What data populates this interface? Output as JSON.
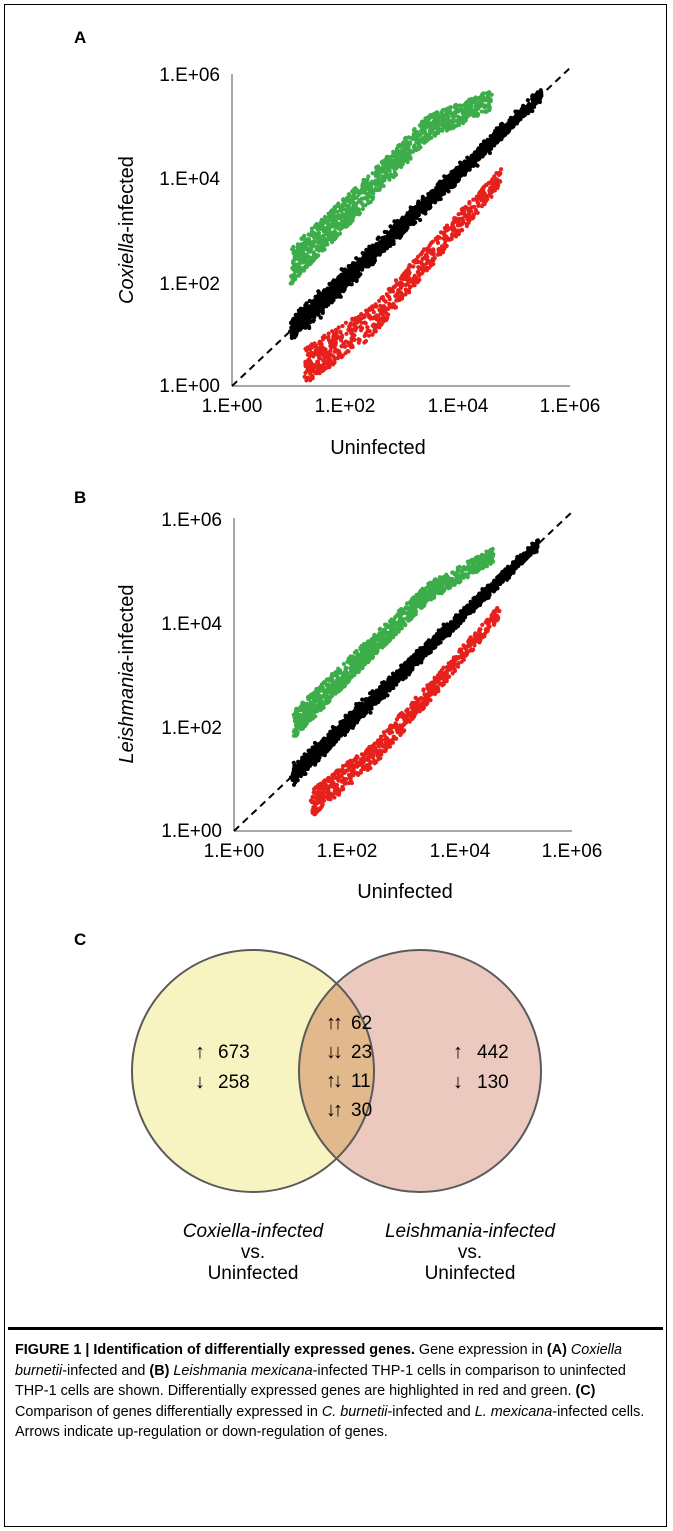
{
  "panels": {
    "A": {
      "letter": "A",
      "ylabel_italic": "Coxiella",
      "ylabel_rest": "-infected",
      "xlabel": "Uninfected",
      "y_ticks": [
        "1.E+06",
        "1.E+04",
        "1.E+02",
        "1.E+00"
      ],
      "x_ticks": [
        "1.E+00",
        "1.E+02",
        "1.E+04",
        "1.E+06"
      ]
    },
    "B": {
      "letter": "B",
      "ylabel_italic": "Leishmania",
      "ylabel_rest": "-infected",
      "xlabel": "Uninfected",
      "y_ticks": [
        "1.E+06",
        "1.E+04",
        "1.E+02",
        "1.E+00"
      ],
      "x_ticks": [
        "1.E+00",
        "1.E+02",
        "1.E+04",
        "1.E+06"
      ]
    },
    "C": {
      "letter": "C",
      "left": {
        "up": "673",
        "down": "258"
      },
      "overlap": [
        {
          "arrows": "↑↑",
          "count": "62"
        },
        {
          "arrows": "↓↓",
          "count": "23"
        },
        {
          "arrows": "↑↓",
          "count": "11"
        },
        {
          "arrows": "↓↑",
          "count": "30"
        }
      ],
      "right": {
        "up": "442",
        "down": "130"
      },
      "up_arrow": "↑",
      "down_arrow": "↓",
      "left_label": {
        "org": "Coxiella-infected",
        "vs": "vs.",
        "ref": "Uninfected"
      },
      "right_label": {
        "org": "Leishmania-infected",
        "vs": "vs.",
        "ref": "Uninfected"
      },
      "colors": {
        "left_fill": "#f7f4c2",
        "right_fill": "#ebc9be",
        "overlap_fill": "#e2b98c",
        "stroke": "#5a5a5a"
      }
    }
  },
  "chart_data": [
    {
      "type": "scatter",
      "title": "",
      "xlabel": "Uninfected",
      "ylabel": "Coxiella-infected",
      "x_scale": "log",
      "y_scale": "log",
      "xlim": [
        1,
        1000000
      ],
      "ylim": [
        1,
        1000000
      ],
      "grid": false,
      "reference_line": "y = x (dashed)",
      "colors": {
        "up": "#3dad4a",
        "down": "#e8201c",
        "unchanged": "#000000"
      },
      "series": [
        {
          "color": "#3dad4a",
          "spread_log10": [
            0.3,
            0.9
          ],
          "trend": [
            [
              12,
              40
            ],
            [
              200,
              1000
            ],
            [
              3000,
              25000
            ],
            [
              40000,
              110000
            ]
          ]
        },
        {
          "color": "#e8201c",
          "spread_log10": [
            -0.9,
            -0.3
          ],
          "trend": [
            [
              20,
              12
            ],
            [
              300,
              60
            ],
            [
              3000,
              800
            ],
            [
              60000,
              20000
            ]
          ]
        },
        {
          "color": "#000000",
          "spread_log10": [
            -0.3,
            0.3
          ],
          "trend": [
            [
              12,
              12
            ],
            [
              1000,
              1000
            ],
            [
              100000,
              100000
            ],
            [
              300000,
              300000
            ]
          ]
        }
      ]
    },
    {
      "type": "scatter",
      "title": "",
      "xlabel": "Uninfected",
      "ylabel": "Leishmania-infected",
      "x_scale": "log",
      "y_scale": "log",
      "xlim": [
        1,
        1000000
      ],
      "ylim": [
        1,
        1000000
      ],
      "grid": false,
      "reference_line": "y = x (dashed)",
      "colors": {
        "up": "#3dad4a",
        "down": "#e8201c",
        "unchanged": "#000000"
      },
      "series": [
        {
          "color": "#3dad4a",
          "spread_log10": [
            0.25,
            0.7
          ],
          "trend": [
            [
              12,
              30
            ],
            [
              200,
              700
            ],
            [
              3000,
              14000
            ],
            [
              40000,
              80000
            ]
          ]
        },
        {
          "color": "#e8201c",
          "spread_log10": [
            -0.7,
            -0.25
          ],
          "trend": [
            [
              25,
              12
            ],
            [
              300,
              80
            ],
            [
              3000,
              1000
            ],
            [
              50000,
              25000
            ]
          ]
        },
        {
          "color": "#000000",
          "spread_log10": [
            -0.25,
            0.25
          ],
          "trend": [
            [
              12,
              12
            ],
            [
              1000,
              1000
            ],
            [
              100000,
              100000
            ],
            [
              250000,
              250000
            ]
          ]
        }
      ]
    }
  ],
  "caption": {
    "fig_label": "FIGURE 1 |",
    "title": "Identification of differentially expressed genes.",
    "p1": "Gene expression in",
    "A": "(A)",
    "org1": "Coxiella burnetii",
    "p2": "-infected and",
    "B": "(B)",
    "org2": "Leishmania mexicana",
    "p3": "-infected THP-1 cells in comparison to uninfected THP-1 cells are shown. Differentially expressed genes are highlighted in red and green.",
    "C": "(C)",
    "p4": "Comparison of genes differentially expressed in",
    "org3": "C. burnetii",
    "p5": "-infected and",
    "org4": "L. mexicana",
    "p6": "-infected cells. Arrows indicate up-regulation or down-regulation of genes."
  }
}
